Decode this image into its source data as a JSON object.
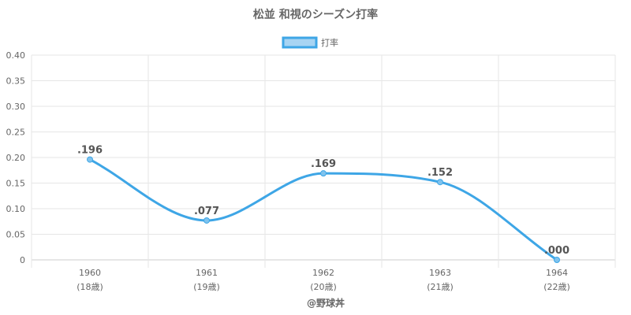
{
  "chart_data": {
    "type": "line",
    "title": "松並 和視のシーズン打率",
    "legend": {
      "label": "打率",
      "position": "top",
      "color": "#3ea6e6",
      "fill": "#a7d4f3"
    },
    "categories": [
      "1960",
      "1961",
      "1962",
      "1963",
      "1964"
    ],
    "category_sublabels": [
      "(18歳)",
      "(19歳)",
      "(20歳)",
      "(21歳)",
      "(22歳)"
    ],
    "series": [
      {
        "name": "打率",
        "values": [
          0.196,
          0.077,
          0.169,
          0.152,
          0.0
        ],
        "color": "#3ea6e6"
      }
    ],
    "data_labels": [
      ".196",
      ".077",
      ".169",
      ".152",
      ".000"
    ],
    "ylim": [
      0,
      0.4
    ],
    "yticks": [
      {
        "value": 0,
        "label": "0"
      },
      {
        "value": 0.05,
        "label": "0.05"
      },
      {
        "value": 0.1,
        "label": "0.10"
      },
      {
        "value": 0.15,
        "label": "0.15"
      },
      {
        "value": 0.2,
        "label": "0.20"
      },
      {
        "value": 0.25,
        "label": "0.25"
      },
      {
        "value": 0.3,
        "label": "0.30"
      },
      {
        "value": 0.35,
        "label": "0.35"
      },
      {
        "value": 0.4,
        "label": "0.40"
      }
    ],
    "grid": true,
    "footer": "@野球丼"
  }
}
